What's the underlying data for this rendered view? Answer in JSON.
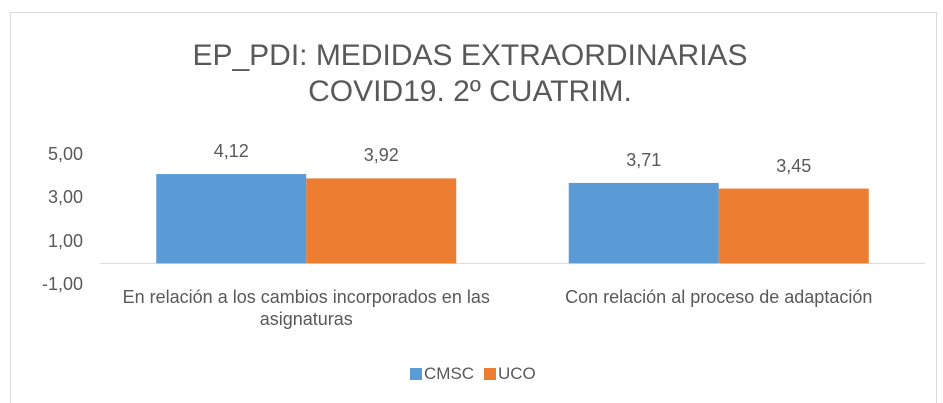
{
  "chart_data": {
    "type": "bar",
    "title": "EP_PDI: MEDIDAS EXTRAORDINARIAS COVID19. 2º CUATRIM.",
    "categories": [
      "En relación a los cambios incorporados en las asignaturas",
      "Con relación al proceso de adaptación"
    ],
    "series": [
      {
        "name": "CMSC",
        "color": "#5b9bd5",
        "values": [
          4.12,
          3.71
        ],
        "value_labels": [
          "4,12",
          "3,71"
        ]
      },
      {
        "name": "UCO",
        "color": "#ed7d31",
        "values": [
          3.92,
          3.45
        ],
        "value_labels": [
          "3,92",
          "3,45"
        ]
      }
    ],
    "ylim": [
      -1,
      5
    ],
    "yticks": [
      {
        "value": -1,
        "label": "-1,00"
      },
      {
        "value": 1,
        "label": "1,00"
      },
      {
        "value": 3,
        "label": "3,00"
      },
      {
        "value": 5,
        "label": "5,00"
      }
    ],
    "grid": false,
    "legend": "bottom"
  }
}
